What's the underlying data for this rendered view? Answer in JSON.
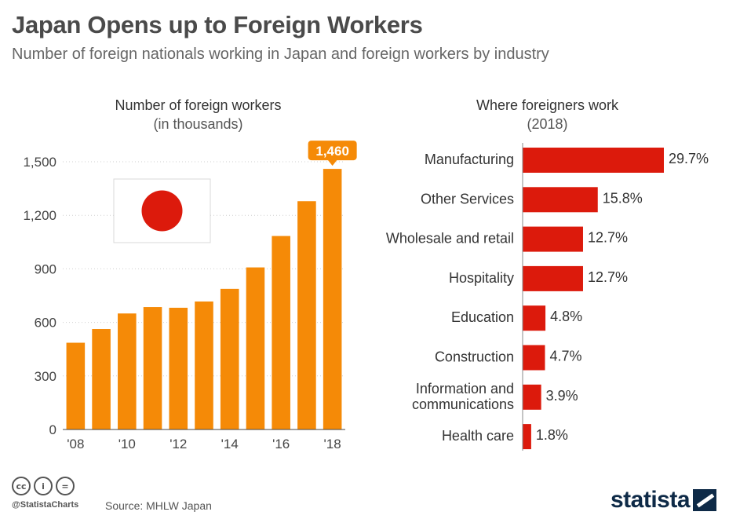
{
  "header": {
    "title": "Japan Opens up to Foreign Workers",
    "subtitle": "Number of foreign nationals working in Japan and foreign workers by industry"
  },
  "left_panel": {
    "title": "Number of foreign workers",
    "subtitle": "(in thousands)"
  },
  "right_panel": {
    "title": "Where foreigners work",
    "subtitle": "(2018)"
  },
  "colors": {
    "orange": "#f58a07",
    "red": "#dc1a0c",
    "flag_red": "#dc1a0c"
  },
  "chart_data": [
    {
      "type": "bar",
      "title": "Number of foreign workers",
      "ylabel": "(in thousands)",
      "categories": [
        "2008",
        "2009",
        "2010",
        "2011",
        "2012",
        "2013",
        "2014",
        "2015",
        "2016",
        "2017",
        "2018"
      ],
      "values": [
        486,
        563,
        650,
        686,
        682,
        717,
        788,
        908,
        1084,
        1279,
        1460
      ],
      "x_tick_labels": [
        "'08",
        "'10",
        "'12",
        "'14",
        "'16",
        "'18"
      ],
      "x_tick_categories": [
        "2008",
        "2010",
        "2012",
        "2014",
        "2016",
        "2018"
      ],
      "y_ticks": [
        0,
        300,
        600,
        900,
        1200,
        1500
      ],
      "y_tick_labels": [
        "0",
        "300",
        "600",
        "900",
        "1,200",
        "1,500"
      ],
      "ylim": [
        0,
        1500
      ],
      "callout": {
        "category": "2018",
        "label": "1,460"
      }
    },
    {
      "type": "bar",
      "orientation": "horizontal",
      "title": "Where foreigners work",
      "subtitle": "(2018)",
      "categories": [
        "Manufacturing",
        "Other Services",
        "Wholesale and retail",
        "Hospitality",
        "Education",
        "Construction",
        "Information and communications",
        "Health care"
      ],
      "category_lines": [
        [
          "Manufacturing"
        ],
        [
          "Other Services"
        ],
        [
          "Wholesale and retail"
        ],
        [
          "Hospitality"
        ],
        [
          "Education"
        ],
        [
          "Construction"
        ],
        [
          "Information and",
          "communications"
        ],
        [
          "Health care"
        ]
      ],
      "values": [
        29.7,
        15.8,
        12.7,
        12.7,
        4.8,
        4.7,
        3.9,
        1.8
      ],
      "value_labels": [
        "29.7%",
        "15.8%",
        "12.7%",
        "12.7%",
        "4.8%",
        "4.7%",
        "3.9%",
        "1.8%"
      ],
      "unit": "%"
    }
  ],
  "footer": {
    "cc_icons": [
      "cc",
      "i",
      "="
    ],
    "handle": "@StatistaCharts",
    "source": "Source: MHLW Japan",
    "logo": "statista"
  }
}
